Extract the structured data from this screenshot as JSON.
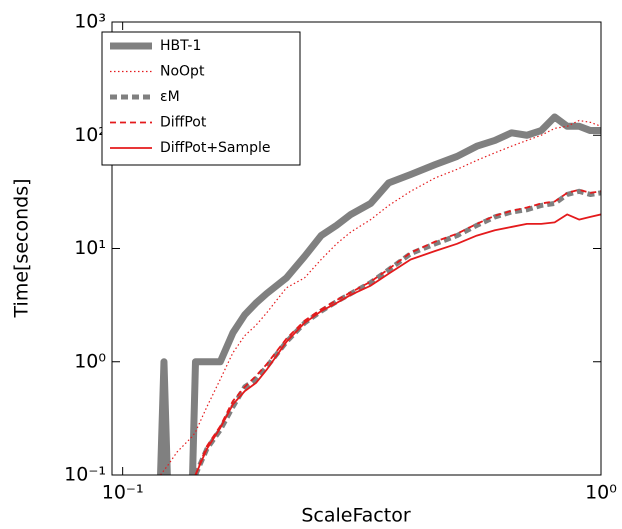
{
  "chart_data": {
    "type": "line",
    "xlabel": "ScaleFactor",
    "ylabel": "Time[seconds]",
    "xscale": "log",
    "yscale": "log",
    "xlim": [
      0.095,
      1
    ],
    "ylim": [
      0.1,
      1000
    ],
    "xticks": [
      {
        "value": 0.1,
        "label": "10⁻¹"
      },
      {
        "value": 1,
        "label": "10⁰"
      }
    ],
    "yticks": [
      {
        "value": 0.1,
        "label": "10⁻¹"
      },
      {
        "value": 1,
        "label": "10⁰"
      },
      {
        "value": 10,
        "label": "10¹"
      },
      {
        "value": 100,
        "label": "10²"
      },
      {
        "value": 1000,
        "label": "10³"
      }
    ],
    "legend": "upper left",
    "x": [
      0.12,
      0.122,
      0.124,
      0.13,
      0.14,
      0.142,
      0.15,
      0.16,
      0.17,
      0.18,
      0.19,
      0.2,
      0.22,
      0.24,
      0.26,
      0.28,
      0.3,
      0.33,
      0.36,
      0.4,
      0.45,
      0.5,
      0.55,
      0.6,
      0.65,
      0.7,
      0.75,
      0.8,
      0.85,
      0.9,
      0.95,
      1.0
    ],
    "series": [
      {
        "name": "HBT-1",
        "color": "#808080",
        "linestyle": "solid",
        "linewidth": 7,
        "values": [
          0.1,
          1,
          0.1,
          null,
          0.1,
          1,
          1,
          1,
          1.8,
          2.6,
          3.3,
          4,
          5.5,
          8.5,
          13,
          16,
          20,
          25,
          38,
          45,
          55,
          65,
          80,
          90,
          105,
          100,
          110,
          145,
          120,
          120,
          110,
          110
        ]
      },
      {
        "name": "NoOpt",
        "color": "#e41a1c",
        "linestyle": "dotted",
        "linewidth": 1.2,
        "values": [
          0.1,
          0.11,
          0.12,
          0.16,
          0.22,
          0.24,
          0.4,
          0.7,
          1.2,
          1.7,
          2.1,
          2.7,
          4.5,
          5.5,
          8,
          11,
          14,
          18,
          24,
          32,
          42,
          50,
          60,
          70,
          80,
          90,
          100,
          115,
          120,
          135,
          130,
          120
        ]
      },
      {
        "name": "εM",
        "color": "#808080",
        "linestyle": "dashed",
        "linewidth": 5,
        "values": [
          null,
          null,
          null,
          null,
          null,
          0.1,
          0.17,
          0.25,
          0.4,
          0.6,
          0.7,
          0.9,
          1.5,
          2.2,
          2.8,
          3.4,
          4,
          5,
          6.5,
          9,
          11,
          13,
          16,
          19,
          21,
          22,
          24,
          25,
          30,
          32,
          30,
          31
        ]
      },
      {
        "name": "DiffPot",
        "color": "#e41a1c",
        "linestyle": "dashed",
        "linewidth": 1.8,
        "values": [
          null,
          null,
          null,
          null,
          null,
          0.1,
          0.18,
          0.27,
          0.45,
          0.6,
          0.75,
          0.95,
          1.6,
          2.3,
          2.9,
          3.5,
          4.1,
          5.1,
          6.6,
          9.2,
          11.5,
          13.5,
          16.5,
          19.5,
          21.5,
          23,
          25,
          26,
          31,
          33,
          31,
          32
        ]
      },
      {
        "name": "DiffPot+Sample",
        "color": "#e41a1c",
        "linestyle": "solid",
        "linewidth": 1.8,
        "values": [
          null,
          null,
          null,
          null,
          null,
          0.1,
          0.17,
          0.26,
          0.42,
          0.55,
          0.65,
          0.85,
          1.5,
          2.2,
          2.8,
          3.3,
          3.9,
          4.7,
          6,
          8,
          9.5,
          11,
          13,
          14.5,
          15.5,
          16.5,
          16.5,
          17,
          20,
          18,
          19,
          20
        ]
      }
    ]
  }
}
